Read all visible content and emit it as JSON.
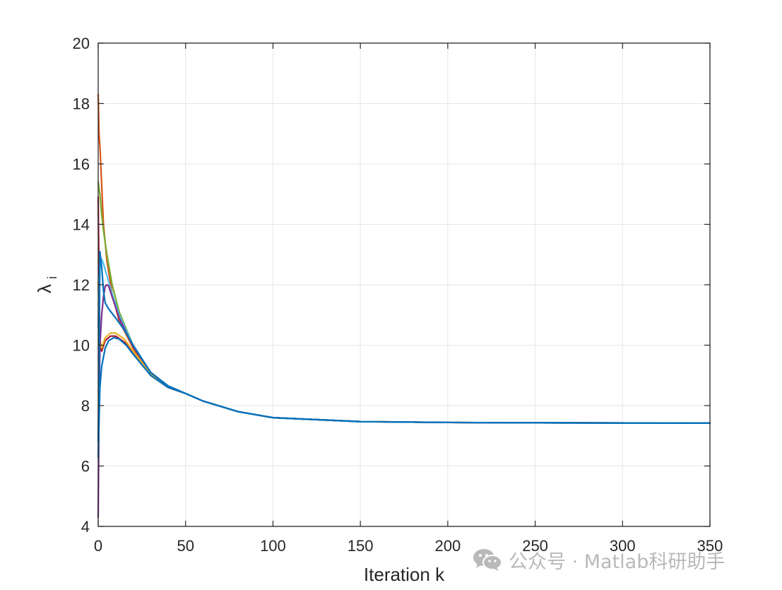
{
  "chart_data": {
    "type": "line",
    "title": "",
    "xlabel": "Iteration k",
    "ylabel": "λ",
    "ylabel_subscript": "i",
    "xlim": [
      0,
      350
    ],
    "ylim": [
      4,
      20
    ],
    "xticks": [
      0,
      50,
      100,
      150,
      200,
      250,
      300,
      350
    ],
    "yticks": [
      4,
      6,
      8,
      10,
      12,
      14,
      16,
      18,
      20
    ],
    "grid": true,
    "legend": "none",
    "series": [
      {
        "color": "#D95319",
        "points": [
          [
            0,
            18.3
          ],
          [
            0.5,
            17.0
          ],
          [
            1,
            16.6
          ],
          [
            2,
            15.3
          ],
          [
            3,
            14.0
          ],
          [
            5,
            12.8
          ],
          [
            8,
            11.7
          ],
          [
            12,
            10.8
          ],
          [
            20,
            9.9
          ],
          [
            30,
            9.0
          ],
          [
            40,
            8.6
          ],
          [
            50,
            8.4
          ],
          [
            60,
            8.15
          ],
          [
            80,
            7.8
          ],
          [
            100,
            7.6
          ],
          [
            150,
            7.47
          ],
          [
            200,
            7.44
          ],
          [
            250,
            7.43
          ],
          [
            350,
            7.42
          ]
        ]
      },
      {
        "color": "#77AC30",
        "points": [
          [
            0,
            15.4
          ],
          [
            1,
            15.0
          ],
          [
            2,
            14.3
          ],
          [
            3,
            13.8
          ],
          [
            5,
            13.0
          ],
          [
            8,
            12.0
          ],
          [
            12,
            11.1
          ],
          [
            20,
            10.0
          ],
          [
            30,
            9.1
          ],
          [
            40,
            8.65
          ],
          [
            50,
            8.4
          ],
          [
            60,
            8.15
          ],
          [
            80,
            7.8
          ],
          [
            100,
            7.6
          ],
          [
            150,
            7.47
          ],
          [
            200,
            7.44
          ],
          [
            250,
            7.43
          ],
          [
            350,
            7.42
          ]
        ]
      },
      {
        "color": "#A2142F",
        "points": [
          [
            0,
            14.9
          ],
          [
            0.5,
            12.0
          ],
          [
            1,
            10.0
          ],
          [
            2,
            9.8
          ],
          [
            4,
            10.15
          ],
          [
            7,
            10.3
          ],
          [
            10,
            10.3
          ],
          [
            15,
            10.1
          ],
          [
            20,
            9.75
          ],
          [
            30,
            9.0
          ],
          [
            40,
            8.6
          ],
          [
            50,
            8.4
          ],
          [
            60,
            8.15
          ],
          [
            80,
            7.8
          ],
          [
            100,
            7.6
          ],
          [
            150,
            7.47
          ],
          [
            200,
            7.44
          ],
          [
            250,
            7.43
          ],
          [
            350,
            7.42
          ]
        ]
      },
      {
        "color": "#EDB120",
        "points": [
          [
            0,
            12.1
          ],
          [
            0.5,
            11.0
          ],
          [
            1,
            10.2
          ],
          [
            2,
            9.9
          ],
          [
            4,
            10.25
          ],
          [
            7,
            10.4
          ],
          [
            10,
            10.4
          ],
          [
            15,
            10.2
          ],
          [
            20,
            9.8
          ],
          [
            30,
            9.05
          ],
          [
            40,
            8.6
          ],
          [
            50,
            8.4
          ],
          [
            60,
            8.15
          ],
          [
            80,
            7.8
          ],
          [
            100,
            7.6
          ],
          [
            150,
            7.47
          ],
          [
            200,
            7.44
          ],
          [
            250,
            7.43
          ],
          [
            350,
            7.42
          ]
        ]
      },
      {
        "color": "#4DBEEE",
        "points": [
          [
            0,
            10.6
          ],
          [
            0.5,
            11.8
          ],
          [
            1,
            12.7
          ],
          [
            2,
            12.85
          ],
          [
            3,
            12.7
          ],
          [
            5,
            12.3
          ],
          [
            8,
            11.7
          ],
          [
            12,
            11.0
          ],
          [
            20,
            10.0
          ],
          [
            30,
            9.1
          ],
          [
            40,
            8.65
          ],
          [
            50,
            8.4
          ],
          [
            60,
            8.15
          ],
          [
            80,
            7.8
          ],
          [
            100,
            7.6
          ],
          [
            150,
            7.47
          ],
          [
            200,
            7.44
          ],
          [
            250,
            7.43
          ],
          [
            350,
            7.42
          ]
        ]
      },
      {
        "color": "#7E2F8E",
        "points": [
          [
            0,
            4.3
          ],
          [
            0.5,
            8.0
          ],
          [
            1,
            10.0
          ],
          [
            2,
            11.0
          ],
          [
            3,
            11.6
          ],
          [
            4,
            11.95
          ],
          [
            5,
            12.0
          ],
          [
            6,
            11.95
          ],
          [
            8,
            11.6
          ],
          [
            12,
            10.9
          ],
          [
            20,
            9.95
          ],
          [
            30,
            9.1
          ],
          [
            40,
            8.65
          ],
          [
            50,
            8.4
          ],
          [
            60,
            8.15
          ],
          [
            80,
            7.8
          ],
          [
            100,
            7.6
          ],
          [
            150,
            7.47
          ],
          [
            200,
            7.44
          ],
          [
            250,
            7.43
          ],
          [
            350,
            7.42
          ]
        ]
      },
      {
        "color": "#0072BD",
        "points": [
          [
            0,
            6.8
          ],
          [
            0.5,
            9.5
          ],
          [
            1,
            13.1
          ],
          [
            2,
            12.6
          ],
          [
            3,
            11.8
          ],
          [
            4,
            11.4
          ],
          [
            6,
            11.2
          ],
          [
            10,
            10.9
          ],
          [
            15,
            10.5
          ],
          [
            20,
            10.0
          ],
          [
            30,
            9.1
          ],
          [
            40,
            8.65
          ],
          [
            50,
            8.4
          ],
          [
            60,
            8.15
          ],
          [
            80,
            7.8
          ],
          [
            100,
            7.6
          ],
          [
            150,
            7.47
          ],
          [
            200,
            7.44
          ],
          [
            250,
            7.43
          ],
          [
            350,
            7.42
          ]
        ]
      },
      {
        "color": "#0072BD",
        "points": [
          [
            0,
            6.3
          ],
          [
            0.5,
            7.5
          ],
          [
            1,
            8.6
          ],
          [
            2,
            9.3
          ],
          [
            4,
            9.9
          ],
          [
            6,
            10.15
          ],
          [
            9,
            10.25
          ],
          [
            12,
            10.2
          ],
          [
            16,
            10.0
          ],
          [
            20,
            9.7
          ],
          [
            30,
            9.0
          ],
          [
            40,
            8.6
          ],
          [
            50,
            8.4
          ],
          [
            60,
            8.15
          ],
          [
            80,
            7.8
          ],
          [
            100,
            7.6
          ],
          [
            150,
            7.47
          ],
          [
            200,
            7.44
          ],
          [
            250,
            7.43
          ],
          [
            350,
            7.42
          ]
        ]
      }
    ]
  },
  "watermark": {
    "icon": "wechat-icon",
    "text": "公众号 · Matlab科研助手",
    "color": "#b9b9b9"
  }
}
